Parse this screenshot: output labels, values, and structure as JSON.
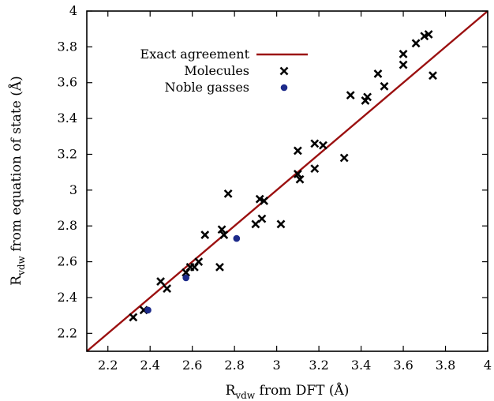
{
  "chart_data": {
    "type": "scatter",
    "title": "",
    "xlabel": {
      "main": "R",
      "sub": "vdw",
      "rest": " from DFT (Å)"
    },
    "ylabel": {
      "main": "R",
      "sub": "vdw",
      "rest": " from equation of state (Å)"
    },
    "xlim": [
      2.1,
      4.0
    ],
    "ylim": [
      2.1,
      4.0
    ],
    "xticks": [
      "2.2",
      "2.4",
      "2.6",
      "2.8",
      "3",
      "3.2",
      "3.4",
      "3.6",
      "3.8",
      "4"
    ],
    "yticks": [
      "2.2",
      "2.4",
      "2.6",
      "2.8",
      "3",
      "3.2",
      "3.4",
      "3.6",
      "3.8",
      "4"
    ],
    "grid": false,
    "legend_position": "top-left",
    "series": [
      {
        "name": "Exact agreement",
        "kind": "line",
        "color": "#9b1010",
        "points": [
          [
            2.1,
            2.1
          ],
          [
            4.0,
            4.0
          ]
        ]
      },
      {
        "name": "Molecules",
        "kind": "cross",
        "color": "#000000",
        "points": [
          [
            2.32,
            2.29
          ],
          [
            2.37,
            2.33
          ],
          [
            2.45,
            2.49
          ],
          [
            2.48,
            2.45
          ],
          [
            2.57,
            2.54
          ],
          [
            2.59,
            2.57
          ],
          [
            2.61,
            2.57
          ],
          [
            2.63,
            2.6
          ],
          [
            2.66,
            2.75
          ],
          [
            2.73,
            2.57
          ],
          [
            2.74,
            2.78
          ],
          [
            2.75,
            2.75
          ],
          [
            2.77,
            2.98
          ],
          [
            2.9,
            2.81
          ],
          [
            2.92,
            2.95
          ],
          [
            2.93,
            2.84
          ],
          [
            2.94,
            2.94
          ],
          [
            3.02,
            2.81
          ],
          [
            3.1,
            3.09
          ],
          [
            3.1,
            3.22
          ],
          [
            3.11,
            3.06
          ],
          [
            3.18,
            3.26
          ],
          [
            3.18,
            3.12
          ],
          [
            3.22,
            3.25
          ],
          [
            3.32,
            3.18
          ],
          [
            3.35,
            3.53
          ],
          [
            3.42,
            3.5
          ],
          [
            3.43,
            3.52
          ],
          [
            3.48,
            3.65
          ],
          [
            3.51,
            3.58
          ],
          [
            3.6,
            3.7
          ],
          [
            3.6,
            3.76
          ],
          [
            3.66,
            3.82
          ],
          [
            3.7,
            3.86
          ],
          [
            3.72,
            3.87
          ],
          [
            3.74,
            3.64
          ]
        ]
      },
      {
        "name": "Noble gasses",
        "kind": "dot",
        "color": "#1c2a8a",
        "points": [
          [
            2.39,
            2.33
          ],
          [
            2.57,
            2.51
          ],
          [
            2.81,
            2.73
          ]
        ]
      }
    ]
  }
}
